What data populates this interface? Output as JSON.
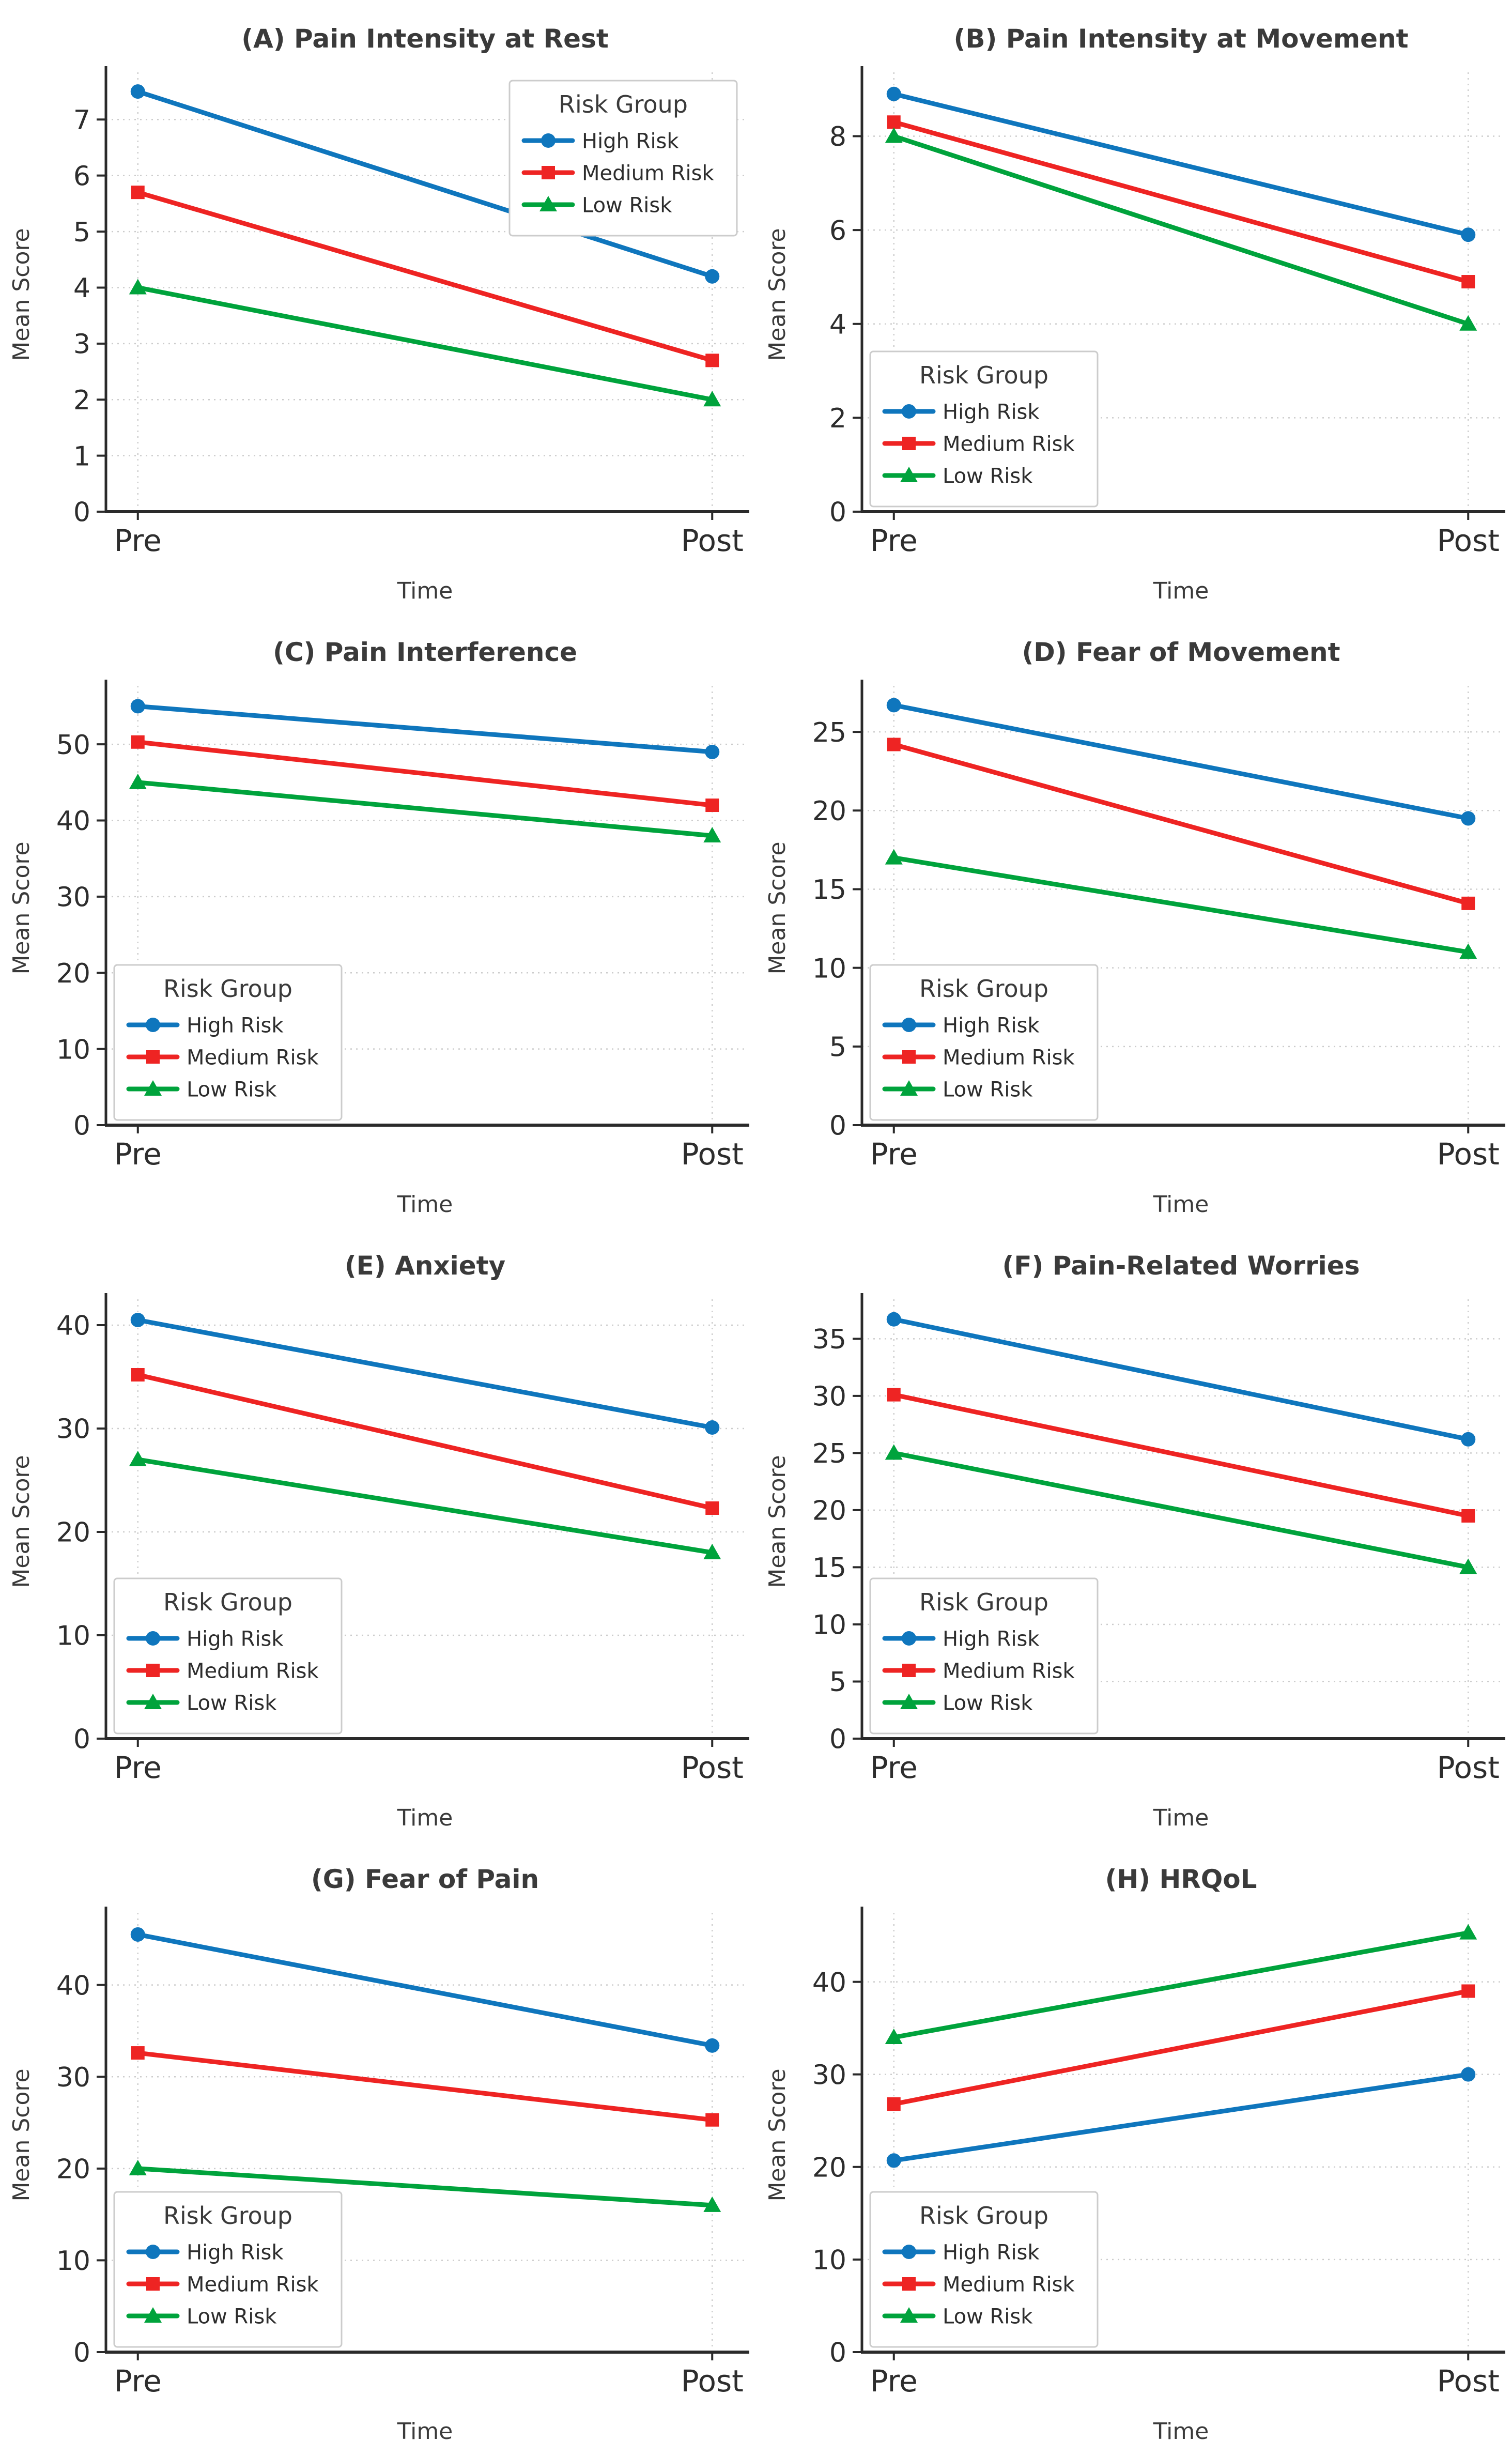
{
  "figure": {
    "background": "#ffffff",
    "legend_title": "Risk Group",
    "xlabel": "Time",
    "ylabel": "Mean Score",
    "categories": [
      "Pre",
      "Post"
    ],
    "palette": {
      "high_risk": "#0f76bd",
      "medium_risk": "#ee2423",
      "low_risk": "#00a33c"
    },
    "grid_color": "#cccccc",
    "axis_color": "#2a2a2a",
    "tick_text_color": "#2d2d2d",
    "title_text_color": "#3a3a3a",
    "legend_border_color": "#cccccc"
  },
  "chart_data": [
    {
      "panel": "A",
      "type": "line",
      "title": "(A) Pain Intensity at Rest",
      "x": [
        "Pre",
        "Post"
      ],
      "xlabel": "Time",
      "ylabel": "Mean Score",
      "ylim": [
        0,
        7.75
      ],
      "yticks": [
        0,
        1,
        2,
        3,
        4,
        5,
        6,
        7
      ],
      "grid": true,
      "legend_position": "upper-right",
      "legend_title": "Risk Group",
      "series": [
        {
          "name": "High Risk",
          "marker": "circle",
          "color": "#0f76bd",
          "values": [
            7.5,
            4.2
          ]
        },
        {
          "name": "Medium Risk",
          "marker": "square",
          "color": "#ee2423",
          "values": [
            5.7,
            2.7
          ]
        },
        {
          "name": "Low Risk",
          "marker": "triangle",
          "color": "#00a33c",
          "values": [
            4.0,
            2.0
          ]
        }
      ]
    },
    {
      "panel": "B",
      "type": "line",
      "title": "(B) Pain Intensity at Movement",
      "x": [
        "Pre",
        "Post"
      ],
      "xlabel": "Time",
      "ylabel": "Mean Score",
      "ylim": [
        0,
        9.25
      ],
      "yticks": [
        0,
        2,
        4,
        6,
        8
      ],
      "grid": true,
      "legend_position": "lower-left",
      "legend_title": "Risk Group",
      "series": [
        {
          "name": "High Risk",
          "marker": "circle",
          "color": "#0f76bd",
          "values": [
            8.9,
            5.9
          ]
        },
        {
          "name": "Medium Risk",
          "marker": "square",
          "color": "#ee2423",
          "values": [
            8.3,
            4.9
          ]
        },
        {
          "name": "Low Risk",
          "marker": "triangle",
          "color": "#00a33c",
          "values": [
            8.0,
            4.0
          ]
        }
      ]
    },
    {
      "panel": "C",
      "type": "line",
      "title": "(C) Pain Interference",
      "x": [
        "Pre",
        "Post"
      ],
      "xlabel": "Time",
      "ylabel": "Mean Score",
      "ylim": [
        0,
        57
      ],
      "yticks": [
        0,
        10,
        20,
        30,
        40,
        50
      ],
      "grid": true,
      "legend_position": "lower-left",
      "legend_title": "Risk Group",
      "series": [
        {
          "name": "High Risk",
          "marker": "circle",
          "color": "#0f76bd",
          "values": [
            55.0,
            49.0
          ]
        },
        {
          "name": "Medium Risk",
          "marker": "square",
          "color": "#ee2423",
          "values": [
            50.3,
            42.0
          ]
        },
        {
          "name": "Low Risk",
          "marker": "triangle",
          "color": "#00a33c",
          "values": [
            45.0,
            38.0
          ]
        }
      ]
    },
    {
      "panel": "D",
      "type": "line",
      "title": "(D) Fear of Movement",
      "x": [
        "Pre",
        "Post"
      ],
      "xlabel": "Time",
      "ylabel": "Mean Score",
      "ylim": [
        0,
        27.6
      ],
      "yticks": [
        0,
        5,
        10,
        15,
        20,
        25
      ],
      "grid": true,
      "legend_position": "lower-left",
      "legend_title": "Risk Group",
      "series": [
        {
          "name": "High Risk",
          "marker": "circle",
          "color": "#0f76bd",
          "values": [
            26.7,
            19.5
          ]
        },
        {
          "name": "Medium Risk",
          "marker": "square",
          "color": "#ee2423",
          "values": [
            24.2,
            14.1
          ]
        },
        {
          "name": "Low Risk",
          "marker": "triangle",
          "color": "#00a33c",
          "values": [
            17.0,
            11.0
          ]
        }
      ]
    },
    {
      "panel": "E",
      "type": "line",
      "title": "(E) Anxiety",
      "x": [
        "Pre",
        "Post"
      ],
      "xlabel": "Time",
      "ylabel": "Mean Score",
      "ylim": [
        0,
        42
      ],
      "yticks": [
        0,
        10,
        20,
        30,
        40
      ],
      "grid": true,
      "legend_position": "lower-left",
      "legend_title": "Risk Group",
      "series": [
        {
          "name": "High Risk",
          "marker": "circle",
          "color": "#0f76bd",
          "values": [
            40.5,
            30.1
          ]
        },
        {
          "name": "Medium Risk",
          "marker": "square",
          "color": "#ee2423",
          "values": [
            35.2,
            22.3
          ]
        },
        {
          "name": "Low Risk",
          "marker": "triangle",
          "color": "#00a33c",
          "values": [
            27.0,
            18.0
          ]
        }
      ]
    },
    {
      "panel": "F",
      "type": "line",
      "title": "(F) Pain-Related Worries",
      "x": [
        "Pre",
        "Post"
      ],
      "xlabel": "Time",
      "ylabel": "Mean Score",
      "ylim": [
        0,
        38
      ],
      "yticks": [
        0,
        5,
        10,
        15,
        20,
        25,
        30,
        35
      ],
      "grid": true,
      "legend_position": "lower-left",
      "legend_title": "Risk Group",
      "series": [
        {
          "name": "High Risk",
          "marker": "circle",
          "color": "#0f76bd",
          "values": [
            36.7,
            26.2
          ]
        },
        {
          "name": "Medium Risk",
          "marker": "square",
          "color": "#ee2423",
          "values": [
            30.1,
            19.5
          ]
        },
        {
          "name": "Low Risk",
          "marker": "triangle",
          "color": "#00a33c",
          "values": [
            25.0,
            15.0
          ]
        }
      ]
    },
    {
      "panel": "G",
      "type": "line",
      "title": "(G) Fear of Pain",
      "x": [
        "Pre",
        "Post"
      ],
      "xlabel": "Time",
      "ylabel": "Mean Score",
      "ylim": [
        0,
        47.3
      ],
      "yticks": [
        0,
        10,
        20,
        30,
        40
      ],
      "grid": true,
      "legend_position": "lower-left",
      "legend_title": "Risk Group",
      "series": [
        {
          "name": "High Risk",
          "marker": "circle",
          "color": "#0f76bd",
          "values": [
            45.5,
            33.4
          ]
        },
        {
          "name": "Medium Risk",
          "marker": "square",
          "color": "#ee2423",
          "values": [
            32.6,
            25.3
          ]
        },
        {
          "name": "Low Risk",
          "marker": "triangle",
          "color": "#00a33c",
          "values": [
            20.0,
            16.0
          ]
        }
      ]
    },
    {
      "panel": "H",
      "type": "line",
      "title": "(H) HRQoL",
      "x": [
        "Pre",
        "Post"
      ],
      "xlabel": "Time",
      "ylabel": "Mean Score",
      "ylim": [
        0,
        46.9
      ],
      "yticks": [
        0,
        10,
        20,
        30,
        40
      ],
      "grid": true,
      "legend_position": "lower-left",
      "legend_title": "Risk Group",
      "series": [
        {
          "name": "High Risk",
          "marker": "circle",
          "color": "#0f76bd",
          "values": [
            20.7,
            30.0
          ]
        },
        {
          "name": "Medium Risk",
          "marker": "square",
          "color": "#ee2423",
          "values": [
            26.8,
            39.0
          ]
        },
        {
          "name": "Low Risk",
          "marker": "triangle",
          "color": "#00a33c",
          "values": [
            34.0,
            45.3
          ]
        }
      ]
    }
  ]
}
